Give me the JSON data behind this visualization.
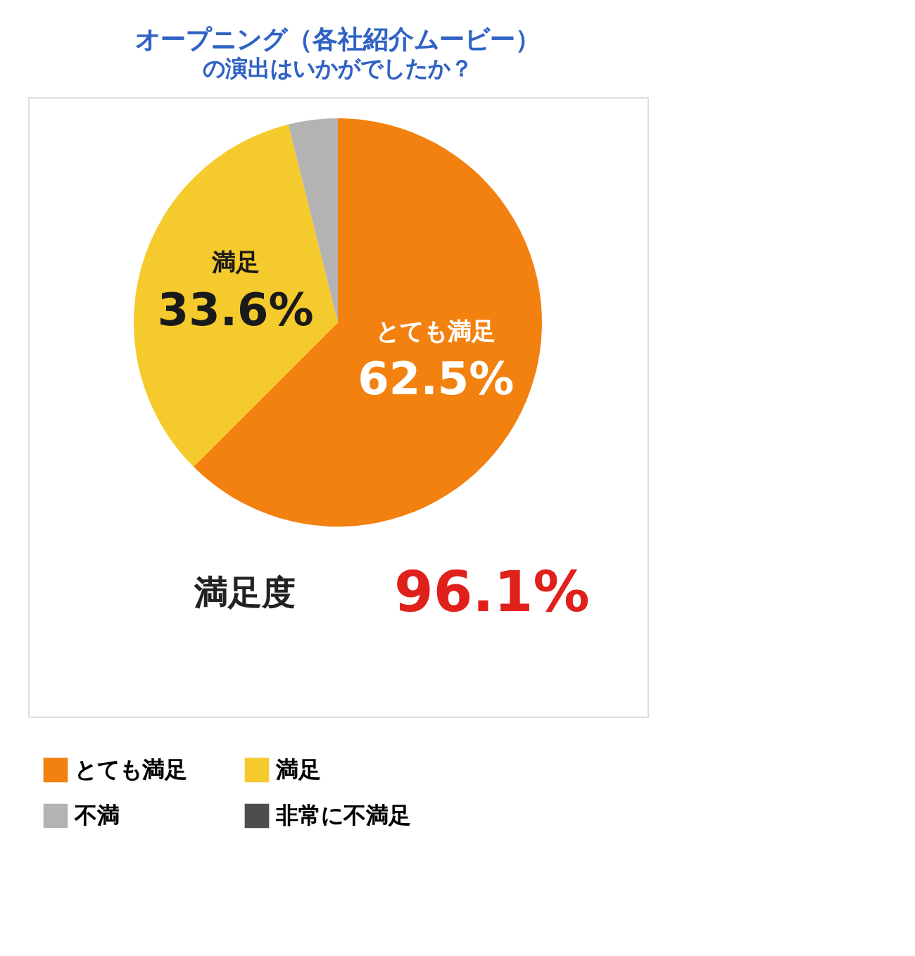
{
  "chart_data": {
    "type": "pie",
    "title": "オープニング（各社紹介ムービー）",
    "subtitle": "の演出はいかがでしたか？",
    "categories": [
      "とても満足",
      "満足",
      "不満",
      "非常に不満足"
    ],
    "values": [
      62.5,
      33.6,
      3.9,
      0
    ],
    "colors": [
      "#f28110",
      "#f5ca2c",
      "#b3b3b3",
      "#4d4d4d"
    ],
    "value_labels": [
      "62.5%",
      "33.6%",
      null,
      null
    ],
    "annotations": [
      "満足度",
      "96.1%"
    ],
    "legend": "bottom"
  }
}
